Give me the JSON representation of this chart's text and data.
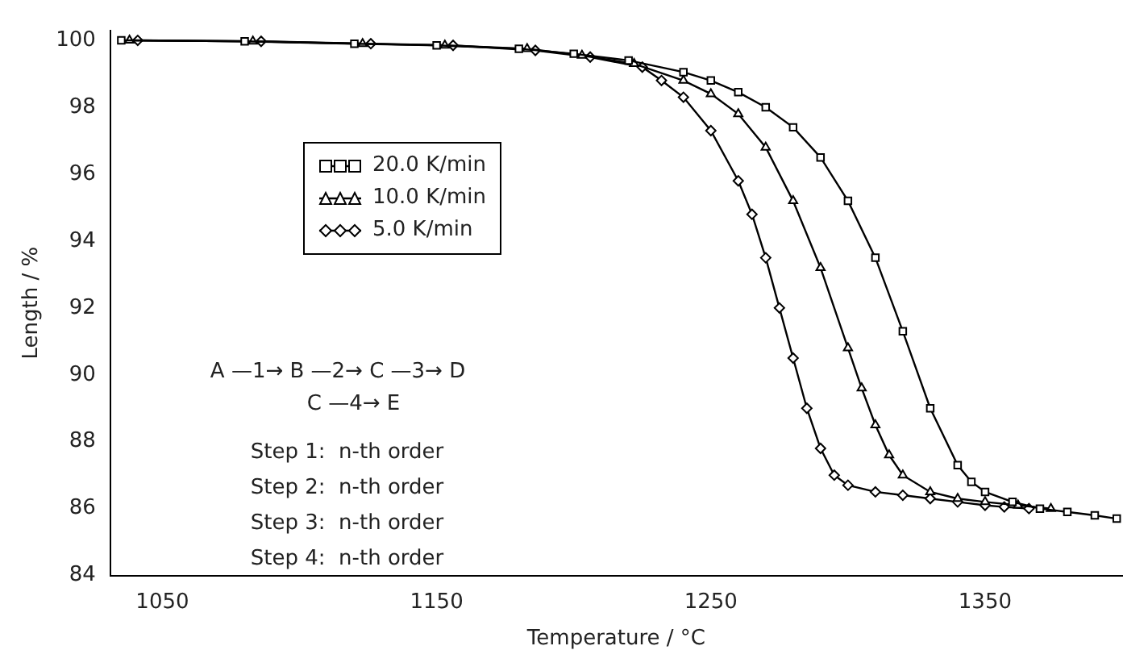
{
  "chart_data": {
    "type": "line",
    "xlabel": "Temperature / °C",
    "ylabel": "Length / %",
    "xlim": [
      1031,
      1400
    ],
    "ylim": [
      84,
      100.3
    ],
    "xticks": [
      1050,
      1150,
      1250,
      1350
    ],
    "yticks": [
      84,
      86,
      88,
      90,
      92,
      94,
      96,
      98,
      100
    ],
    "grid": false,
    "legend": "top left",
    "line_style": "solid",
    "series": [
      {
        "name": "20.0 K/min",
        "color": "#000000",
        "marker": "square",
        "x": [
          1035,
          1080,
          1120,
          1150,
          1180,
          1200,
          1220,
          1240,
          1250,
          1260,
          1270,
          1280,
          1290,
          1300,
          1310,
          1320,
          1330,
          1340,
          1345,
          1350,
          1360,
          1370,
          1380,
          1390,
          1398
        ],
        "values": [
          100,
          99.97,
          99.9,
          99.85,
          99.75,
          99.6,
          99.4,
          99.05,
          98.8,
          98.45,
          98.0,
          97.4,
          96.5,
          95.2,
          93.5,
          91.3,
          89.0,
          87.3,
          86.8,
          86.5,
          86.2,
          86.0,
          85.9,
          85.8,
          85.7
        ]
      },
      {
        "name": "10.0 K/min",
        "color": "#000000",
        "marker": "triangle",
        "x": [
          1038,
          1083,
          1123,
          1153,
          1183,
          1203,
          1222,
          1240,
          1250,
          1260,
          1270,
          1280,
          1290,
          1300,
          1305,
          1310,
          1315,
          1320,
          1330,
          1340,
          1350,
          1362,
          1374
        ],
        "values": [
          100,
          99.97,
          99.9,
          99.85,
          99.75,
          99.55,
          99.3,
          98.8,
          98.4,
          97.8,
          96.8,
          95.2,
          93.2,
          90.8,
          89.6,
          88.5,
          87.6,
          87.0,
          86.5,
          86.3,
          86.2,
          86.1,
          86.0
        ]
      },
      {
        "name": "5.0 K/min",
        "color": "#000000",
        "marker": "diamond",
        "x": [
          1041,
          1086,
          1126,
          1156,
          1186,
          1206,
          1225,
          1232,
          1240,
          1250,
          1260,
          1265,
          1270,
          1275,
          1280,
          1285,
          1290,
          1295,
          1300,
          1310,
          1320,
          1330,
          1340,
          1350,
          1357,
          1366
        ],
        "values": [
          100,
          99.97,
          99.9,
          99.85,
          99.7,
          99.5,
          99.2,
          98.8,
          98.3,
          97.3,
          95.8,
          94.8,
          93.5,
          92.0,
          90.5,
          89.0,
          87.8,
          87.0,
          86.7,
          86.5,
          86.4,
          86.3,
          86.2,
          86.1,
          86.05,
          86.0
        ]
      }
    ],
    "annotations": [
      "A —1→ B —2→ C —3→ D",
      "C —4→ E",
      "Step 1:  n-th order",
      "Step 2:  n-th order",
      "Step 3:  n-th order",
      "Step 4:  n-th order"
    ]
  }
}
